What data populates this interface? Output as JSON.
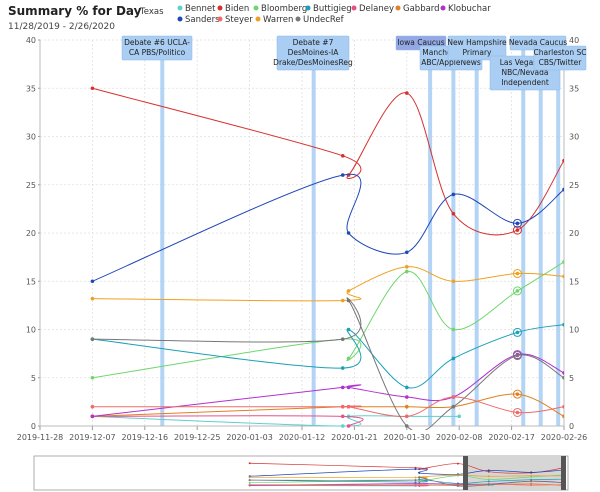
{
  "title": "Summary % for Day",
  "subtitle": "11/28/2019 - 2/26/2020",
  "region": "Texas",
  "colors": {
    "Bennet": "#5fcfcf",
    "Biden": "#d6312f",
    "Bloomberg": "#6dd66d",
    "Buttigieg": "#1aa0b8",
    "Delaney": "#e8508a",
    "Gabbard": "#e08020",
    "Klobuchar": "#b030d0",
    "Sanders": "#2048b8",
    "Steyer": "#f06a6a",
    "Warren": "#f0a020",
    "UndecRef": "#777777"
  },
  "chart_data": {
    "type": "line",
    "title": "Summary % for Day",
    "subtitle": "11/28/2019 - 2/26/2020",
    "xlabel": "",
    "ylabel": "",
    "x_range": [
      "2019-11-28",
      "2020-02-26"
    ],
    "ylim": [
      0,
      40
    ],
    "y_ticks": [
      0,
      5,
      10,
      15,
      20,
      25,
      30,
      35,
      40
    ],
    "x_ticks": [
      "2019-11-28",
      "2019-12-07",
      "2019-12-16",
      "2019-12-25",
      "2020-01-03",
      "2020-01-12",
      "2020-01-21",
      "2020-01-30",
      "2020-02-08",
      "2020-02-17",
      "2020-02-26"
    ],
    "grid": true,
    "legend": "top",
    "series": [
      {
        "name": "Bennet",
        "points": [
          [
            "2019-12-07",
            1
          ],
          [
            "2020-01-19",
            0
          ],
          [
            "2020-01-20",
            1
          ],
          [
            "2020-01-30",
            1
          ],
          [
            "2020-02-08",
            1
          ]
        ]
      },
      {
        "name": "Biden",
        "points": [
          [
            "2019-12-07",
            35
          ],
          [
            "2020-01-19",
            28
          ],
          [
            "2020-01-20",
            26
          ],
          [
            "2020-01-30",
            34.5
          ],
          [
            "2020-02-07",
            22
          ],
          [
            "2020-02-18",
            20.3
          ],
          [
            "2020-02-26",
            27.5
          ]
        ]
      },
      {
        "name": "Bloomberg",
        "points": [
          [
            "2019-12-07",
            5
          ],
          [
            "2020-01-19",
            9
          ],
          [
            "2020-01-20",
            7
          ],
          [
            "2020-01-30",
            16
          ],
          [
            "2020-02-07",
            10
          ],
          [
            "2020-02-18",
            14
          ],
          [
            "2020-02-26",
            17
          ]
        ]
      },
      {
        "name": "Buttigieg",
        "points": [
          [
            "2019-12-07",
            9
          ],
          [
            "2020-01-19",
            6
          ],
          [
            "2020-01-20",
            10
          ],
          [
            "2020-01-30",
            4
          ],
          [
            "2020-02-07",
            7
          ],
          [
            "2020-02-18",
            9.7
          ],
          [
            "2020-02-26",
            10.5
          ]
        ]
      },
      {
        "name": "Delaney",
        "points": [
          [
            "2019-12-07",
            1
          ],
          [
            "2020-01-19",
            1
          ],
          [
            "2020-01-20",
            0
          ]
        ]
      },
      {
        "name": "Gabbard",
        "points": [
          [
            "2019-12-07",
            1
          ],
          [
            "2020-01-19",
            2
          ],
          [
            "2020-01-20",
            2
          ],
          [
            "2020-01-30",
            2
          ],
          [
            "2020-02-07",
            2
          ],
          [
            "2020-02-18",
            3.3
          ],
          [
            "2020-02-26",
            1
          ]
        ]
      },
      {
        "name": "Klobuchar",
        "points": [
          [
            "2019-12-07",
            1
          ],
          [
            "2020-01-19",
            4
          ],
          [
            "2020-01-20",
            4
          ],
          [
            "2020-01-30",
            3
          ],
          [
            "2020-02-07",
            3
          ],
          [
            "2020-02-18",
            7.4
          ],
          [
            "2020-02-26",
            5.5
          ]
        ]
      },
      {
        "name": "Sanders",
        "points": [
          [
            "2019-12-07",
            15
          ],
          [
            "2020-01-19",
            26
          ],
          [
            "2020-01-20",
            20
          ],
          [
            "2020-01-30",
            18
          ],
          [
            "2020-02-07",
            24
          ],
          [
            "2020-02-18",
            21
          ],
          [
            "2020-02-26",
            24.5
          ]
        ]
      },
      {
        "name": "Steyer",
        "points": [
          [
            "2019-12-07",
            2
          ],
          [
            "2020-01-19",
            2
          ],
          [
            "2020-01-20",
            2
          ],
          [
            "2020-01-30",
            1
          ],
          [
            "2020-02-07",
            3
          ],
          [
            "2020-02-18",
            1.4
          ],
          [
            "2020-02-26",
            2
          ]
        ]
      },
      {
        "name": "Warren",
        "points": [
          [
            "2019-12-07",
            13.2
          ],
          [
            "2020-01-19",
            13
          ],
          [
            "2020-01-20",
            14
          ],
          [
            "2020-01-30",
            16.5
          ],
          [
            "2020-02-07",
            15
          ],
          [
            "2020-02-18",
            15.8
          ],
          [
            "2020-02-26",
            15.5
          ]
        ]
      },
      {
        "name": "UndecRef",
        "points": [
          [
            "2019-12-07",
            9
          ],
          [
            "2020-01-19",
            9
          ],
          [
            "2020-01-20",
            13
          ],
          [
            "2020-01-30",
            0
          ],
          [
            "2020-02-07",
            2
          ],
          [
            "2020-02-18",
            7.3
          ],
          [
            "2020-02-26",
            5
          ]
        ]
      }
    ],
    "events": [
      {
        "date": "2019-12-19",
        "label": [
          "Debate #6 UCLA-",
          "CA PBS/Politico"
        ]
      },
      {
        "date": "2020-01-14",
        "label": [
          "Debate #7",
          "DesMoines-IA",
          "Drake/DesMoinesReg"
        ]
      },
      {
        "date": "2020-02-03",
        "label": [
          "Iowa Caucus"
        ]
      },
      {
        "date": "2020-02-07",
        "label": [
          "Manchester NH",
          "ABC/AppleNews"
        ]
      },
      {
        "date": "2020-02-11",
        "label": [
          "New Hampshire",
          "Primary"
        ]
      },
      {
        "date": "2020-02-19",
        "label": [
          "Las Vegas NV",
          "NBC/Nevada",
          "Independent"
        ]
      },
      {
        "date": "2020-02-22",
        "label": [
          "Nevada Caucus"
        ]
      },
      {
        "date": "2020-02-25",
        "label": [
          "Charleston SC",
          "CBS/Twitter"
        ]
      }
    ]
  }
}
